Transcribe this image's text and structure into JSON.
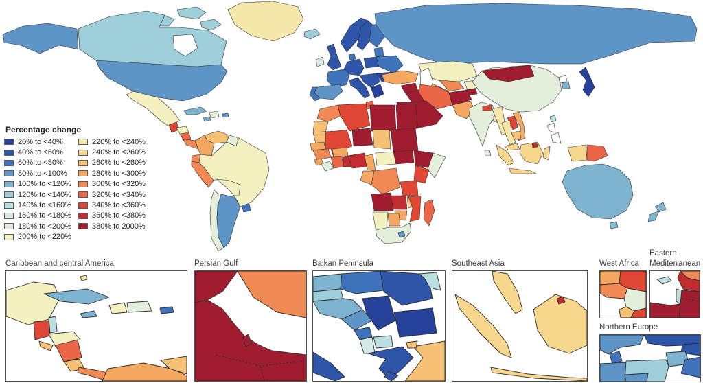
{
  "legend": {
    "title": "Percentage change",
    "items": [
      {
        "label": "20% to <40%",
        "color": "#25419A"
      },
      {
        "label": "40% to <60%",
        "color": "#2F55A9"
      },
      {
        "label": "60% to <80%",
        "color": "#3F74BC"
      },
      {
        "label": "80% to <100%",
        "color": "#5E95C6"
      },
      {
        "label": "100% to <120%",
        "color": "#7FB4D1"
      },
      {
        "label": "120% to <140%",
        "color": "#9FCEDB"
      },
      {
        "label": "140% to <160%",
        "color": "#BCDFE2"
      },
      {
        "label": "160% to <180%",
        "color": "#D7ECE9"
      },
      {
        "label": "180% to <200%",
        "color": "#E3EFDA"
      },
      {
        "label": "200% to <220%",
        "color": "#F4F1C1"
      },
      {
        "label": "220% to <240%",
        "color": "#F6E7AB"
      },
      {
        "label": "240% to <260%",
        "color": "#F7D78D"
      },
      {
        "label": "260% to <280%",
        "color": "#F7C175"
      },
      {
        "label": "280% to <300%",
        "color": "#F5A862"
      },
      {
        "label": "300% to <320%",
        "color": "#F08953"
      },
      {
        "label": "320% to <340%",
        "color": "#EA6646"
      },
      {
        "label": "340% to <360%",
        "color": "#DF4633"
      },
      {
        "label": "360% to <380%",
        "color": "#C22B30"
      },
      {
        "label": "380% to 2000%",
        "color": "#A01D30"
      }
    ],
    "column_split": 10
  },
  "insets": {
    "caribbean": {
      "label": "Caribbean and central America"
    },
    "persian_gulf": {
      "label": "Persian Gulf"
    },
    "balkan": {
      "label": "Balkan Peninsula"
    },
    "southeast_asia": {
      "label": "Southeast Asia"
    },
    "west_africa": {
      "label": "West Africa"
    },
    "eastern_med": {
      "label": "Eastern Mediterranean"
    },
    "northern_europe": {
      "label": "Northern Europe"
    }
  },
  "region_colors": {
    "alaska": "#5E95C6",
    "canada": "#9FCEDB",
    "canada_arctic": "#9FCEDB",
    "hudson_bay": "#FFFFFF",
    "greenland": "#F6E7AB",
    "iceland": "#9FCEDB",
    "usa": "#5E95C6",
    "mexico": "#F4F1C1",
    "guatemala": "#DF4633",
    "honduras": "#F4F1C1",
    "nicaragua": "#EA6646",
    "costa_rica_panama": "#F08953",
    "cuba": "#7FB4D1",
    "jamaica": "#7FB4D1",
    "hispaniola": "#E3EFDA",
    "puerto_rico": "#5E95C6",
    "venezuela": "#F7C175",
    "colombia": "#F5A862",
    "guyanas": "#E3EFDA",
    "ecuador": "#F08953",
    "peru": "#F08953",
    "brazil": "#F4F1C1",
    "bolivia": "#F4F1C1",
    "uruguay": "#3F74BC",
    "argentina": "#5E95C6",
    "chile": "#E3EFDA",
    "ireland": "#D7ECE9",
    "uk": "#2F55A9",
    "norway": "#2F55A9",
    "sweden": "#2F55A9",
    "finland": "#3F74BC",
    "baltics": "#3F74BC",
    "denmark": "#3F74BC",
    "france": "#3F74BC",
    "spain": "#5E95C6",
    "portugal": "#3F74BC",
    "germany_central": "#2F55A9",
    "poland": "#2F55A9",
    "ukraine_belarus": "#3F74BC",
    "italy": "#2F55A9",
    "balkans_main": "#2F55A9",
    "greece": "#25419A",
    "romania_bulgaria": "#25419A",
    "russia": "#5E95C6",
    "kazakhstan": "#F4F1C1",
    "caspian_sea": "#FFFFFF",
    "uzbekistan": "#F08953",
    "turkmenistan": "#F5A862",
    "kyrgyzstan": "#F4F1C1",
    "tajikistan": "#A01D30",
    "afghanistan": "#A01D30",
    "pakistan": "#F5A862",
    "turkey": "#F5A862",
    "syria": "#A01D30",
    "iraq": "#A01D30",
    "iran": "#EA6646",
    "arabian_peninsula": "#A01D30",
    "morocco": "#F08953",
    "western_sahara": "#F7C175",
    "mauritania": "#F7C175",
    "senegal": "#F5A862",
    "guinea": "#F08953",
    "sierra_leone": "#F5A862",
    "liberia": "#E3EFDA",
    "ivory_coast": "#EA6646",
    "ghana": "#C22B30",
    "burkina_faso": "#F5A862",
    "mali": "#DF4633",
    "algeria": "#DF4633",
    "tunisia": "#EA6646",
    "libya": "#A01D30",
    "egypt": "#A01D30",
    "niger": "#A01D30",
    "chad": "#F7C175",
    "sudan": "#A01D30",
    "nigeria": "#C22B30",
    "cameroon": "#F5A862",
    "car": "#F4F1C1",
    "south_sudan": "#A01D30",
    "ethiopia": "#A01D30",
    "somalia": "#E3EFDA",
    "kenya": "#DF4633",
    "drc": "#F08953",
    "congo_gabon": "#F5A862",
    "tanzania": "#DF4633",
    "angola": "#A01D30",
    "zambia": "#C22B30",
    "malawi": "#F7C175",
    "mozambique": "#DF4633",
    "zimbabwe": "#F5A862",
    "namibia": "#F4F1C1",
    "botswana": "#F5A862",
    "south_africa": "#E3EFDA",
    "lesotho": "#5E95C6",
    "madagascar": "#EA6646",
    "india": "#E3EFDA",
    "nepal": "#DF4633",
    "bangladesh": "#F6E7AB",
    "sri_lanka": "#E3EFDA",
    "china": "#E3EFDA",
    "mongolia": "#A01D30",
    "north_korea": "#FFFFFF",
    "south_korea": "#7FB4D1",
    "japan": "#25419A",
    "taiwan": "#BCDFE2",
    "myanmar": "#F6E7AB",
    "thailand": "#F6E7AB",
    "laos": "#DF4633",
    "vietnam": "#F5A862",
    "cambodia": "#F7C175",
    "philippines": "#FFFFFF",
    "malaysia": "#F7D78D",
    "indonesia": "#F7D78D",
    "brunei": "#C22B30",
    "png": "#EA6646",
    "australia": "#7FB4D1",
    "new_zealand": "#7FB4D1",
    "cc_yucatan": "#F4F1C1",
    "cc_belize": "#BCDFE2",
    "cc_guatemala": "#DF4633",
    "cc_honduras": "#F4F1C1",
    "cc_el_salvador": "#F7C175",
    "cc_nicaragua": "#EA6646",
    "cc_costa_rica": "#F7C175",
    "cc_panama": "#F08953",
    "cc_colombia": "#F5A862",
    "cc_venezuela": "#F7C175",
    "cc_cuba": "#7FB4D1",
    "cc_jamaica": "#7FB4D1",
    "cc_haiti": "#F4F1C1",
    "cc_dominican": "#E3EFDA",
    "cc_puerto_rico": "#3F74BC",
    "cc_bahamas": "#F6E7AB",
    "pg_iraq": "#A01D30",
    "pg_iran": "#F08953",
    "pg_arabia": "#A01D30",
    "pg_qatar": "#A01D30",
    "bp_austria": "#7FB4D1",
    "bp_slovenia": "#9FCEDB",
    "bp_hungary": "#3F74BC",
    "bp_romania": "#2F55A9",
    "bp_moldova": "#BCDFE2",
    "bp_croatia": "#7FB4D1",
    "bp_bosnia": "#5E95C6",
    "bp_serbia": "#25419A",
    "bp_bulgaria": "#25419A",
    "bp_montenegro": "#3F74BC",
    "bp_albania": "#D7ECE9",
    "bp_macedonia": "#BCDFE2",
    "bp_greece": "#2F55A9",
    "bp_turkey": "#F7C175",
    "bp_italy": "#2F55A9",
    "sea_malay": "#F7D78D",
    "sea_sumatra": "#F7D78D",
    "sea_java": "#F7D78D",
    "sea_borneo": "#F7D78D",
    "sea_brunei": "#C22B30",
    "wa_senegal": "#F5A862",
    "wa_mali": "#DF4633",
    "wa_guinea": "#F08953",
    "wa_ivory": "#E3EFDA",
    "wa_liberia": "#F7C175",
    "wa_se_red": "#DF4633",
    "em_cyprus": "#BCDFE2",
    "em_turkey": "#F08953",
    "em_syria": "#C22B30",
    "em_israel": "#BCDFE2",
    "em_jordan": "#A01D30",
    "em_egypt": "#A01D30",
    "ne_sweden": "#5E95C6",
    "ne_finland": "#2F55A9",
    "ne_russia_ne": "#2F55A9",
    "ne_baltic_states": "#7FB4D1",
    "ne_belarus": "#3F74BC",
    "ne_denmark": "#3F74BC",
    "ne_germany": "#5E95C6",
    "ne_poland": "#9FCEDB",
    "ne_czech": "#5E95C6"
  }
}
